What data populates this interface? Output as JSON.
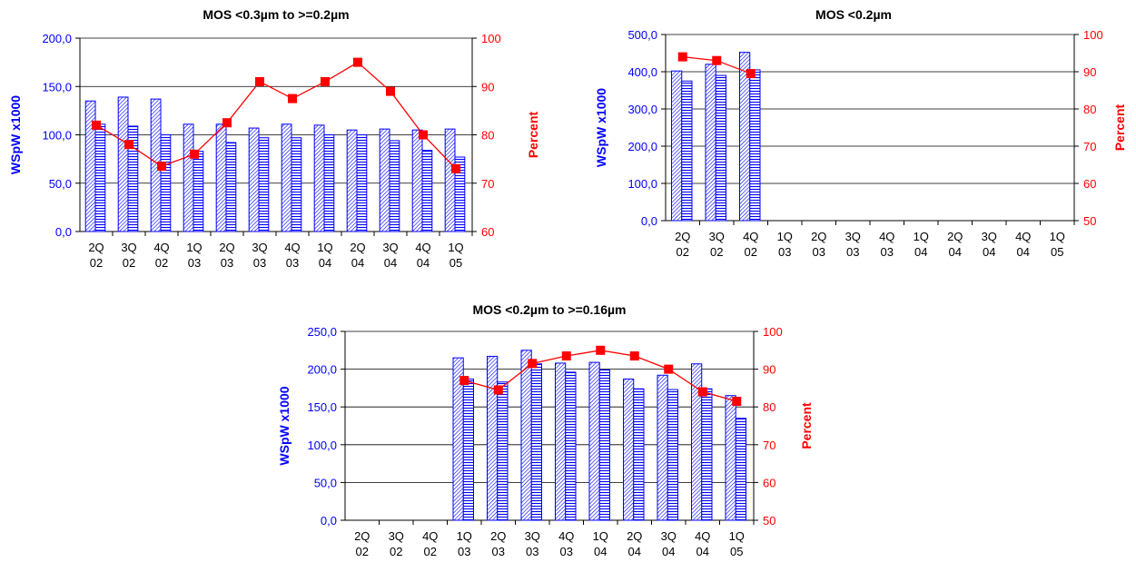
{
  "colors": {
    "bar_stroke": "#0000ff",
    "line": "#ff0000",
    "marker": "#ff0000",
    "left_axis_text": "#0000ff",
    "right_axis_text": "#ff0000",
    "gridline": "#000000"
  },
  "chart_data": [
    {
      "type": "bar+line",
      "title": "MOS <0.3µm to >=0.2µm",
      "ylabel": "WSpW x1000",
      "y2label": "Percent",
      "ylim": [
        0,
        200
      ],
      "y2lim": [
        60,
        100
      ],
      "yticks": [
        "0,0",
        "50,0",
        "100,0",
        "150,0",
        "200,0"
      ],
      "y2ticks": [
        "60",
        "70",
        "80",
        "90",
        "100"
      ],
      "categories": [
        [
          "2Q",
          "02"
        ],
        [
          "3Q",
          "02"
        ],
        [
          "4Q",
          "02"
        ],
        [
          "1Q",
          "03"
        ],
        [
          "2Q",
          "03"
        ],
        [
          "3Q",
          "03"
        ],
        [
          "4Q",
          "03"
        ],
        [
          "1Q",
          "04"
        ],
        [
          "2Q",
          "04"
        ],
        [
          "3Q",
          "04"
        ],
        [
          "4Q",
          "04"
        ],
        [
          "1Q",
          "05"
        ]
      ],
      "bars1": [
        135,
        139,
        137,
        111,
        111,
        107,
        111,
        110,
        105,
        106,
        105,
        106
      ],
      "bars2": [
        111,
        109,
        100,
        83,
        92,
        97,
        97,
        100,
        100,
        94,
        84,
        77
      ],
      "percent": [
        82,
        78,
        73.5,
        76,
        82.5,
        91,
        87.5,
        91,
        95,
        89,
        80,
        73
      ]
    },
    {
      "type": "bar+line",
      "title": "MOS <0.2µm",
      "ylabel": "WSpW x1000",
      "y2label": "Percent",
      "ylim": [
        0,
        500
      ],
      "y2lim": [
        50,
        100
      ],
      "yticks": [
        "0,0",
        "100,0",
        "200,0",
        "300,0",
        "400,0",
        "500,0"
      ],
      "y2ticks": [
        "50",
        "60",
        "70",
        "80",
        "90",
        "100"
      ],
      "categories": [
        [
          "2Q",
          "02"
        ],
        [
          "3Q",
          "02"
        ],
        [
          "4Q",
          "02"
        ],
        [
          "1Q",
          "03"
        ],
        [
          "2Q",
          "03"
        ],
        [
          "3Q",
          "03"
        ],
        [
          "4Q",
          "03"
        ],
        [
          "1Q",
          "04"
        ],
        [
          "2Q",
          "04"
        ],
        [
          "3Q",
          "04"
        ],
        [
          "4Q",
          "04"
        ],
        [
          "1Q",
          "05"
        ]
      ],
      "bars1": [
        402,
        420,
        452,
        null,
        null,
        null,
        null,
        null,
        null,
        null,
        null,
        null
      ],
      "bars2": [
        375,
        390,
        405,
        null,
        null,
        null,
        null,
        null,
        null,
        null,
        null,
        null
      ],
      "percent": [
        94,
        93,
        89.5,
        null,
        null,
        null,
        null,
        null,
        null,
        null,
        null,
        null
      ]
    },
    {
      "type": "bar+line",
      "title": "MOS <0.2µm to >=0.16µm",
      "ylabel": "WSpW x1000",
      "y2label": "Percent",
      "ylim": [
        0,
        250
      ],
      "y2lim": [
        50,
        100
      ],
      "yticks": [
        "0,0",
        "50,0",
        "100,0",
        "150,0",
        "200,0",
        "250,0"
      ],
      "y2ticks": [
        "50",
        "60",
        "70",
        "80",
        "90",
        "100"
      ],
      "categories": [
        [
          "2Q",
          "02"
        ],
        [
          "3Q",
          "02"
        ],
        [
          "4Q",
          "02"
        ],
        [
          "1Q",
          "03"
        ],
        [
          "2Q",
          "03"
        ],
        [
          "3Q",
          "03"
        ],
        [
          "4Q",
          "03"
        ],
        [
          "1Q",
          "04"
        ],
        [
          "2Q",
          "04"
        ],
        [
          "3Q",
          "04"
        ],
        [
          "4Q",
          "04"
        ],
        [
          "1Q",
          "05"
        ]
      ],
      "bars1": [
        null,
        null,
        null,
        215,
        217,
        225,
        208,
        209,
        187,
        192,
        207,
        165
      ],
      "bars2": [
        null,
        null,
        null,
        187,
        183,
        207,
        196,
        199,
        174,
        173,
        174,
        135
      ],
      "percent": [
        null,
        null,
        null,
        87,
        84.5,
        91.5,
        93.5,
        95,
        93.5,
        90,
        84,
        81.5
      ]
    }
  ]
}
